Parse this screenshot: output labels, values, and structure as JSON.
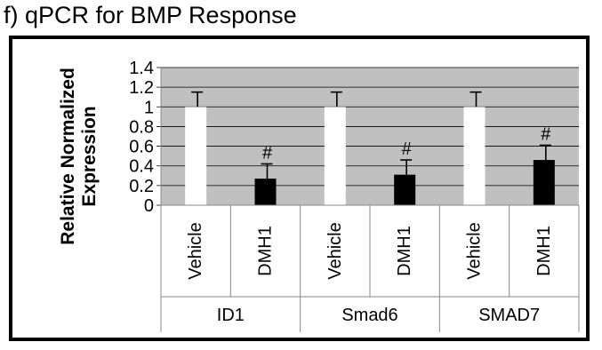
{
  "figure": {
    "title": "f) qPCR for BMP Response"
  },
  "chart_data": {
    "type": "bar",
    "title": "",
    "ylabel": "Relative Normalized Expression",
    "ylabel_lines": [
      "Relative Normalized",
      "Expression"
    ],
    "ylim": [
      0,
      1.4
    ],
    "yticks": [
      0,
      0.2,
      0.4,
      0.6,
      0.8,
      1,
      1.2,
      1.4
    ],
    "ytick_labels": [
      "0",
      "0.2",
      "0.4",
      "0.6",
      "0.8",
      "1",
      "1.2",
      "1.4"
    ],
    "grid": true,
    "legend": "none",
    "groups": [
      "ID1",
      "Smad6",
      "SMAD7"
    ],
    "categories": [
      "Vehicle",
      "DMH1",
      "Vehicle",
      "DMH1",
      "Vehicle",
      "DMH1"
    ],
    "values": [
      1.0,
      0.27,
      1.0,
      0.31,
      1.0,
      0.46
    ],
    "errors": [
      0.15,
      0.15,
      0.15,
      0.15,
      0.15,
      0.15
    ],
    "annotations": [
      "",
      "#",
      "",
      "#",
      "",
      "#"
    ],
    "colors": {
      "Vehicle": "#ffffff",
      "DMH1": "#000000",
      "plot_background": "#c0c0c0",
      "gridline": "#000000"
    }
  }
}
